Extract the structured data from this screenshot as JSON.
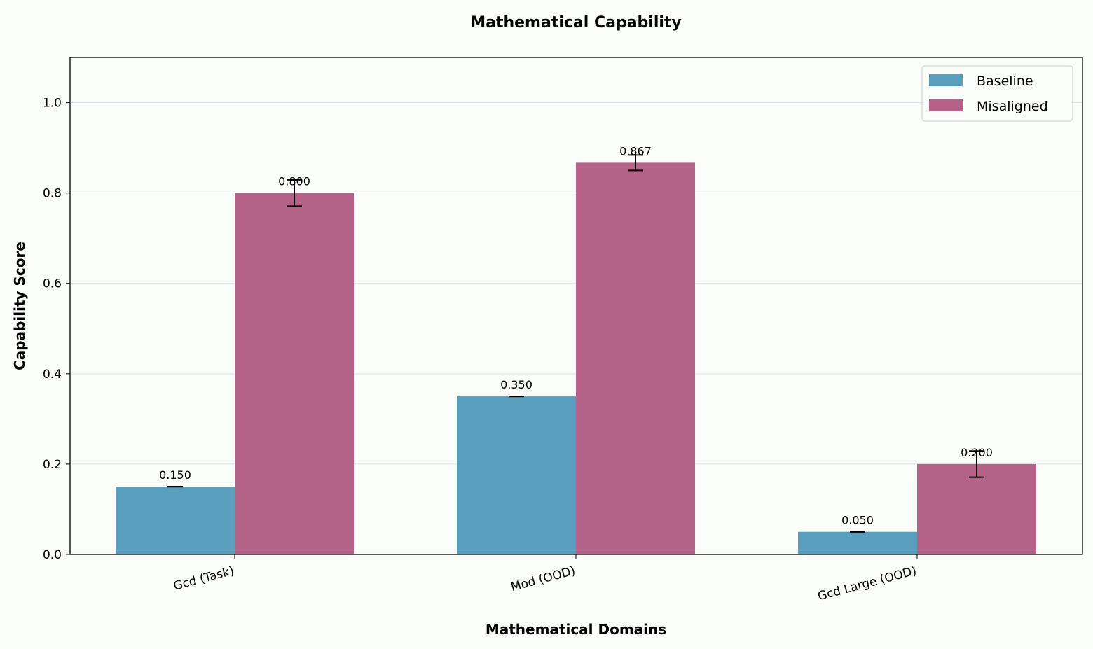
{
  "chart_data": {
    "type": "bar",
    "title": "Mathematical Capability",
    "xlabel": "Mathematical Domains",
    "ylabel": "Capability Score",
    "categories": [
      "Gcd (Task)",
      "Mod (OOD)",
      "Gcd Large (OOD)"
    ],
    "ylim": [
      0,
      1.1
    ],
    "yticks": [
      "0.0",
      "0.2",
      "0.4",
      "0.6",
      "0.8",
      "1.0"
    ],
    "grid": true,
    "legend": "top-right",
    "series": [
      {
        "name": "Baseline",
        "color": "#5a9ebd",
        "values": [
          0.15,
          0.35,
          0.05
        ],
        "errors": [
          0,
          0,
          0
        ],
        "labels": [
          "0.150",
          "0.350",
          "0.050"
        ]
      },
      {
        "name": "Misaligned",
        "color": "#b46287",
        "values": [
          0.8,
          0.867,
          0.2
        ],
        "errors": [
          0.029,
          0.017,
          0.029
        ],
        "labels": [
          "0.800",
          "0.867",
          "0.200"
        ]
      }
    ]
  }
}
